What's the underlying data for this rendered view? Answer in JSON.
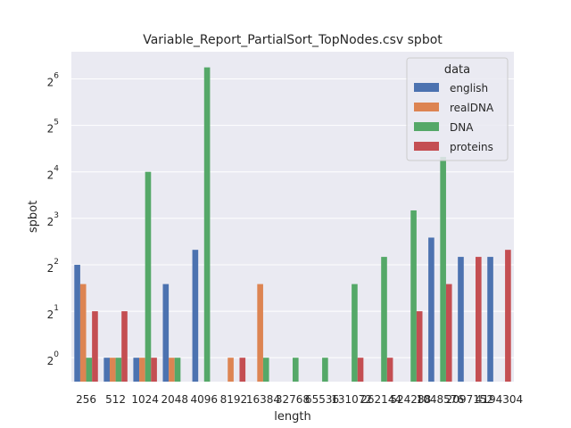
{
  "chart_data": {
    "type": "bar",
    "title": "Variable_Report_PartialSort_TopNodes.csv spbot",
    "xlabel": "length",
    "ylabel": "spbot",
    "y_scale": "log2",
    "ylim": [
      0.7,
      96
    ],
    "y_ticks": [
      {
        "value": 1,
        "base": "2",
        "exp": "0"
      },
      {
        "value": 2,
        "base": "2",
        "exp": "1"
      },
      {
        "value": 4,
        "base": "2",
        "exp": "2"
      },
      {
        "value": 8,
        "base": "2",
        "exp": "3"
      },
      {
        "value": 16,
        "base": "2",
        "exp": "4"
      },
      {
        "value": 32,
        "base": "2",
        "exp": "5"
      },
      {
        "value": 64,
        "base": "2",
        "exp": "6"
      }
    ],
    "categories": [
      "256",
      "512",
      "1024",
      "2048",
      "4096",
      "8192",
      "16384",
      "32768",
      "65536",
      "131072",
      "262144",
      "524288",
      "1048576",
      "2097152",
      "4194304"
    ],
    "legend": {
      "title": "data",
      "position": "top-right"
    },
    "series": [
      {
        "name": "english",
        "color": "#4c72b0",
        "values": [
          4,
          1,
          1,
          3,
          5,
          null,
          null,
          null,
          null,
          null,
          null,
          null,
          6,
          4.5,
          4.5
        ]
      },
      {
        "name": "realDNA",
        "color": "#dd8452",
        "values": [
          3,
          1,
          1,
          1,
          null,
          1,
          3,
          null,
          null,
          null,
          null,
          null,
          null,
          null,
          null
        ]
      },
      {
        "name": "DNA",
        "color": "#55a868",
        "values": [
          1,
          1,
          16,
          1,
          76,
          null,
          1,
          1,
          1,
          3,
          4.5,
          9,
          20,
          null,
          null
        ]
      },
      {
        "name": "proteins",
        "color": "#c44e52",
        "values": [
          2,
          2,
          1,
          null,
          null,
          1,
          null,
          null,
          null,
          1,
          1,
          2,
          3,
          4.5,
          5
        ]
      }
    ]
  }
}
